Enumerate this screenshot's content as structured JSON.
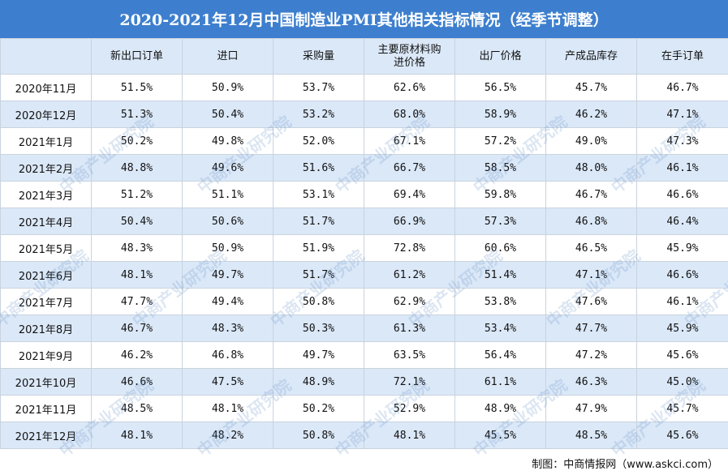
{
  "title": "2020-2021年12月中国制造业PMI其他相关指标情况（经季节调整）",
  "columns": [
    "",
    "新出口订单",
    "进口",
    "采购量",
    "主要原材料购进价格",
    "出厂价格",
    "产成品库存",
    "在手订单"
  ],
  "rows": [
    {
      "label": "2020年11月",
      "values": [
        "51.5%",
        "50.9%",
        "53.7%",
        "62.6%",
        "56.5%",
        "45.7%",
        "46.7%"
      ]
    },
    {
      "label": "2020年12月",
      "values": [
        "51.3%",
        "50.4%",
        "53.2%",
        "68.0%",
        "58.9%",
        "46.2%",
        "47.1%"
      ]
    },
    {
      "label": "2021年1月",
      "values": [
        "50.2%",
        "49.8%",
        "52.0%",
        "67.1%",
        "57.2%",
        "49.0%",
        "47.3%"
      ]
    },
    {
      "label": "2021年2月",
      "values": [
        "48.8%",
        "49.6%",
        "51.6%",
        "66.7%",
        "58.5%",
        "48.0%",
        "46.1%"
      ]
    },
    {
      "label": "2021年3月",
      "values": [
        "51.2%",
        "51.1%",
        "53.1%",
        "69.4%",
        "59.8%",
        "46.7%",
        "46.6%"
      ]
    },
    {
      "label": "2021年4月",
      "values": [
        "50.4%",
        "50.6%",
        "51.7%",
        "66.9%",
        "57.3%",
        "46.8%",
        "46.4%"
      ]
    },
    {
      "label": "2021年5月",
      "values": [
        "48.3%",
        "50.9%",
        "51.9%",
        "72.8%",
        "60.6%",
        "46.5%",
        "45.9%"
      ]
    },
    {
      "label": "2021年6月",
      "values": [
        "48.1%",
        "49.7%",
        "51.7%",
        "61.2%",
        "51.4%",
        "47.1%",
        "46.6%"
      ]
    },
    {
      "label": "2021年7月",
      "values": [
        "47.7%",
        "49.4%",
        "50.8%",
        "62.9%",
        "53.8%",
        "47.6%",
        "46.1%"
      ]
    },
    {
      "label": "2021年8月",
      "values": [
        "46.7%",
        "48.3%",
        "50.3%",
        "61.3%",
        "53.4%",
        "47.7%",
        "45.9%"
      ]
    },
    {
      "label": "2021年9月",
      "values": [
        "46.2%",
        "46.8%",
        "49.7%",
        "63.5%",
        "56.4%",
        "47.2%",
        "45.6%"
      ]
    },
    {
      "label": "2021年10月",
      "values": [
        "46.6%",
        "47.5%",
        "48.9%",
        "72.1%",
        "61.1%",
        "46.3%",
        "45.0%"
      ]
    },
    {
      "label": "2021年11月",
      "values": [
        "48.5%",
        "48.1%",
        "50.2%",
        "52.9%",
        "48.9%",
        "47.9%",
        "45.7%"
      ]
    },
    {
      "label": "2021年12月",
      "values": [
        "48.1%",
        "48.2%",
        "50.8%",
        "48.1%",
        "45.5%",
        "48.5%",
        "45.6%"
      ]
    }
  ],
  "source": "制图：中商情报网（www.askci.com）",
  "watermark": "中商产业研究院",
  "colors": {
    "header": "#3d7fce",
    "stripe": "#dbe8f8"
  }
}
